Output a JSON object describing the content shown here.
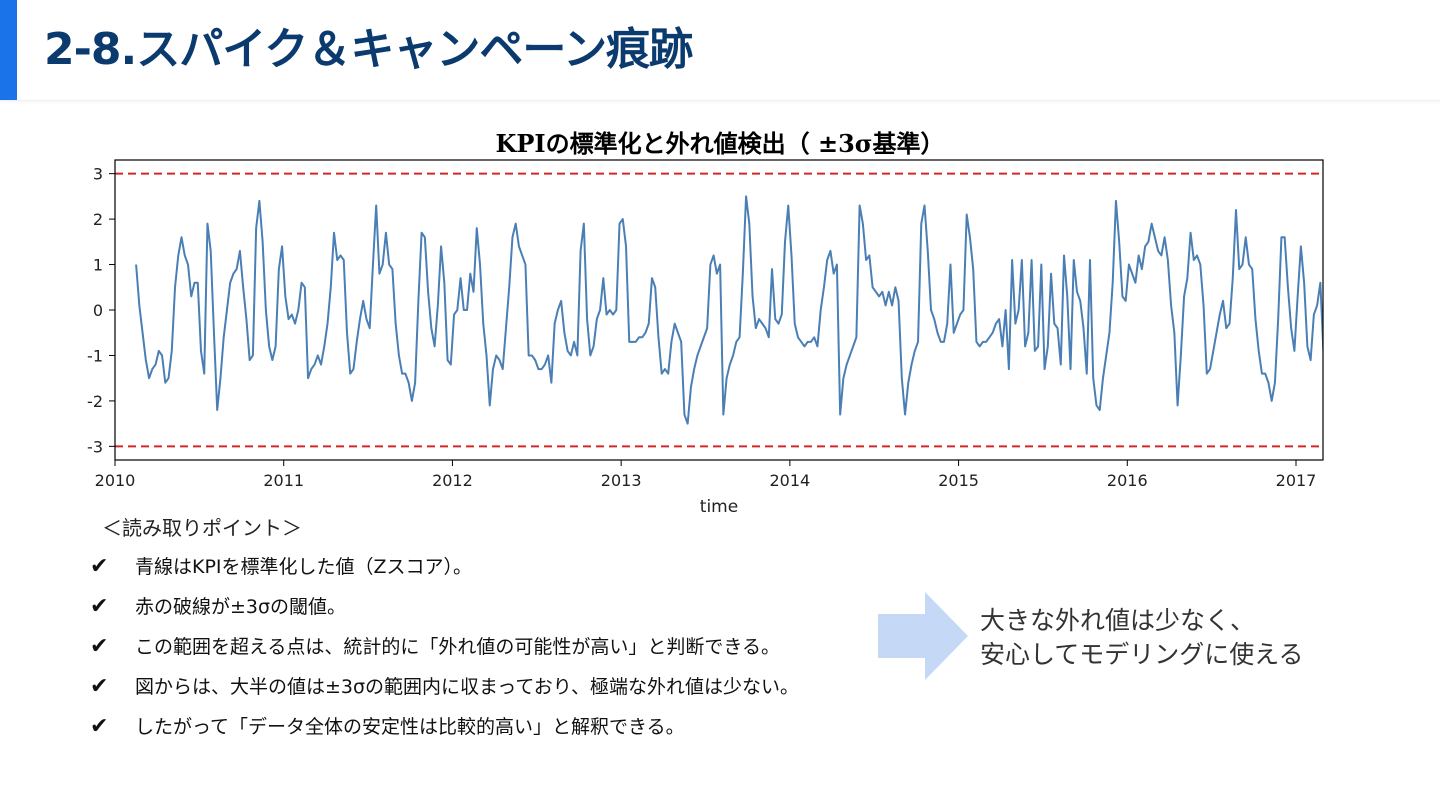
{
  "header": {
    "title": "2-8.スパイク＆キャンペーン痕跡"
  },
  "chart_data": {
    "type": "line",
    "title": "KPIの標準化と外れ値検出（ ±3σ基準）",
    "xlabel": "time",
    "ylabel": "",
    "xlim": [
      2010.0,
      2017.16
    ],
    "ylim": [
      -3.3,
      3.3
    ],
    "x_ticks": [
      2010,
      2011,
      2012,
      2013,
      2014,
      2015,
      2016,
      2017
    ],
    "y_ticks": [
      3,
      2,
      1,
      0,
      -1,
      -2,
      -3
    ],
    "thresholds": [
      3,
      -3
    ],
    "colors": {
      "line": "#4a7fb5",
      "threshold": "#d62728"
    },
    "grid": false,
    "x_start": 2010.125,
    "x_step": 0.019231,
    "series": [
      {
        "values": [
          1.0,
          0.1,
          -0.5,
          -1.1,
          -1.5,
          -1.3,
          -1.2,
          -0.9,
          -1.0,
          -1.6,
          -1.5,
          -0.9,
          0.5,
          1.2,
          1.6,
          1.2,
          1.0,
          0.3,
          0.6,
          0.6,
          -0.9,
          -1.4,
          1.9,
          1.3,
          -0.5,
          -2.2,
          -1.5,
          -0.6,
          0.0,
          0.6,
          0.8,
          0.9,
          1.3,
          0.5,
          -0.2,
          -1.1,
          -1.0,
          1.8,
          2.4,
          1.5,
          0.0,
          -0.8,
          -1.1,
          -0.8,
          0.9,
          1.4,
          0.3,
          -0.2,
          -0.1,
          -0.3,
          0.0,
          0.6,
          0.5,
          -1.5,
          -1.3,
          -1.2,
          -1.0,
          -1.2,
          -0.8,
          -0.3,
          0.5,
          1.7,
          1.1,
          1.2,
          1.1,
          -0.5,
          -1.4,
          -1.3,
          -0.7,
          -0.2,
          0.2,
          -0.2,
          -0.4,
          1.0,
          2.3,
          0.8,
          1.0,
          1.7,
          1.0,
          0.9,
          -0.3,
          -1.0,
          -1.4,
          -1.4,
          -1.6,
          -2.0,
          -1.6,
          0.2,
          1.7,
          1.6,
          0.4,
          -0.4,
          -0.8,
          0.1,
          1.4,
          0.6,
          -1.1,
          -1.2,
          -0.1,
          0.0,
          0.7,
          0.0,
          0.0,
          0.8,
          0.4,
          1.8,
          1.0,
          -0.3,
          -1.0,
          -2.1,
          -1.3,
          -1.0,
          -1.1,
          -1.3,
          -0.4,
          0.5,
          1.6,
          1.9,
          1.4,
          1.2,
          1.0,
          -1.0,
          -1.0,
          -1.1,
          -1.3,
          -1.3,
          -1.2,
          -1.0,
          -1.6,
          -0.3,
          0.0,
          0.2,
          -0.5,
          -0.9,
          -1.0,
          -0.7,
          -1.0,
          1.3,
          1.9,
          -0.2,
          -1.0,
          -0.8,
          -0.2,
          0.0,
          0.7,
          -0.1,
          0.0,
          -0.1,
          0.0,
          1.9,
          2.0,
          1.4,
          -0.7,
          -0.7,
          -0.7,
          -0.6,
          -0.6,
          -0.5,
          -0.3,
          0.7,
          0.5,
          -0.6,
          -1.4,
          -1.3,
          -1.4,
          -0.7,
          -0.3,
          -0.5,
          -0.7,
          -2.3,
          -2.5,
          -1.7,
          -1.3,
          -1.0,
          -0.8,
          -0.6,
          -0.4,
          1.0,
          1.2,
          0.8,
          1.0,
          -2.3,
          -1.5,
          -1.2,
          -1.0,
          -0.7,
          -0.6,
          0.8,
          2.5,
          1.9,
          0.3,
          -0.4,
          -0.2,
          -0.3,
          -0.4,
          -0.6,
          0.9,
          -0.2,
          -0.3,
          -0.1,
          1.5,
          2.3,
          1.2,
          -0.3,
          -0.6,
          -0.7,
          -0.8,
          -0.7,
          -0.7,
          -0.6,
          -0.8,
          0.0,
          0.5,
          1.1,
          1.3,
          0.8,
          1.0,
          -2.3,
          -1.5,
          -1.2,
          -1.0,
          -0.8,
          -0.6,
          2.3,
          1.9,
          1.1,
          1.2,
          0.5,
          0.4,
          0.3,
          0.4,
          0.1,
          0.4,
          0.1,
          0.5,
          0.2,
          -1.5,
          -2.3,
          -1.6,
          -1.2,
          -0.9,
          -0.7,
          1.9,
          2.3,
          1.3,
          0.0,
          -0.2,
          -0.5,
          -0.7,
          -0.7,
          -0.3,
          1.0,
          -0.5,
          -0.3,
          -0.1,
          0.0,
          2.1,
          1.6,
          0.9,
          -0.7,
          -0.8,
          -0.7,
          -0.7,
          -0.6,
          -0.5,
          -0.3,
          -0.2,
          -0.8,
          0.0,
          -1.3,
          1.1,
          -0.3,
          0.0,
          1.1,
          -0.8,
          -0.5,
          1.1,
          -0.9,
          -0.8,
          1.0,
          -1.3,
          -0.8,
          0.8,
          -0.3,
          -0.4,
          -1.2,
          1.2,
          0.3,
          -1.3,
          1.1,
          0.4,
          0.2,
          -0.4,
          -1.4,
          1.1,
          -1.5,
          -2.1,
          -2.2,
          -1.5,
          -1.0,
          -0.5,
          0.6,
          2.4,
          1.5,
          0.3,
          0.2,
          1.0,
          0.8,
          0.6,
          1.2,
          0.9,
          1.4,
          1.5,
          1.9,
          1.6,
          1.3,
          1.2,
          1.6,
          1.1,
          0.1,
          -0.5,
          -2.1,
          -1.0,
          0.3,
          0.7,
          1.7,
          1.1,
          1.2,
          1.0,
          0.1,
          -1.4,
          -1.3,
          -0.9,
          -0.5,
          -0.1,
          0.2,
          -0.4,
          -0.3,
          0.7,
          2.2,
          0.9,
          1.0,
          1.6,
          1.0,
          0.9,
          -0.2,
          -0.9,
          -1.4,
          -1.4,
          -1.6,
          -2.0,
          -1.6,
          -0.2,
          1.6,
          1.6,
          0.5,
          -0.4,
          -0.9,
          0.3,
          1.4,
          0.6,
          -0.8,
          -1.1,
          -0.1,
          0.1,
          0.6,
          -1.0
        ]
      }
    ]
  },
  "points": {
    "heading": "＜読み取りポイント＞",
    "check_glyph": "✔",
    "items": [
      "青線はKPIを標準化した値（Zスコア）。",
      "赤の破線が±3σの閾値。",
      "この範囲を超える点は、統計的に「外れ値の可能性が高い」と判断できる。",
      "図からは、大半の値は±3σの範囲内に収まっており、極端な外れ値は少ない。",
      "したがって「データ全体の安定性は比較的高い」と解釈できる。"
    ]
  },
  "callout": {
    "arrow_color": "#c5d8f5",
    "line1": "大きな外れ値は少なく、",
    "line2": "安心してモデリングに使える"
  }
}
